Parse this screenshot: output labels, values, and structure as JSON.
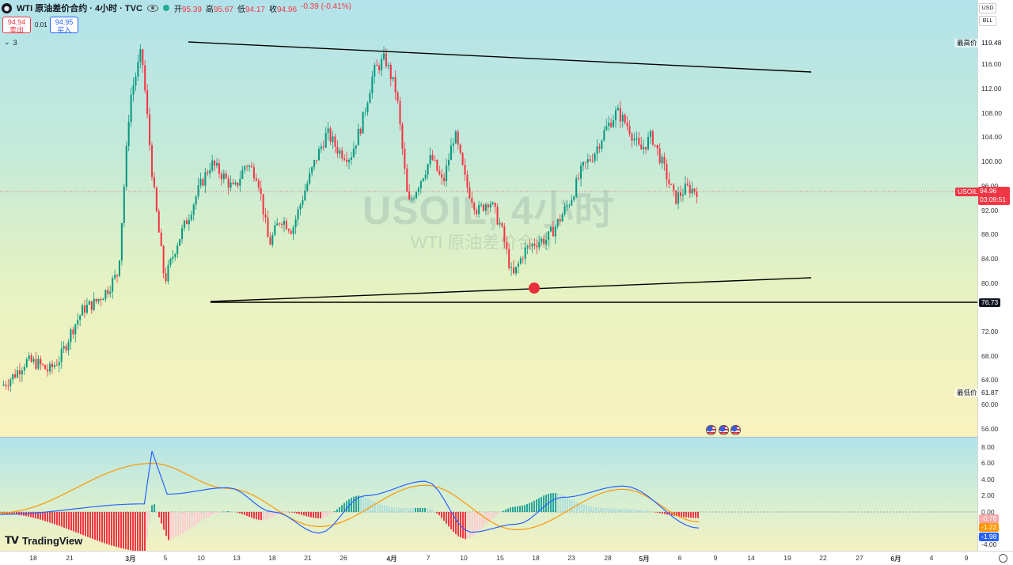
{
  "symbol": {
    "title": "WTI 原油差价合约 · 4小时 · TVC",
    "ohlc": [
      {
        "key": "开",
        "value": "95.39"
      },
      {
        "key": "高",
        "value": "95.67"
      },
      {
        "key": "低",
        "value": "94.17"
      },
      {
        "key": "收",
        "value": "94.96"
      },
      {
        "key": "",
        "value": "-0.39 (-0.41%)"
      }
    ],
    "market_status_color": "#22ab94"
  },
  "trade": {
    "sell_price": "94.94",
    "sell_label": "卖出",
    "buy_price": "94.95",
    "buy_label": "买入",
    "spread": "0.01"
  },
  "indicators_toggle": "3",
  "watermark": {
    "main": "USOIL, 4小时",
    "sub": "WTI 原油差价合约"
  },
  "price_scale": {
    "currency": "USD",
    "unit": "BLL",
    "ticks": [
      "116.00",
      "112.00",
      "108.00",
      "104.00",
      "100.00",
      "96.00",
      "92.00",
      "88.00",
      "84.00",
      "80.00",
      "72.00",
      "68.00",
      "64.00",
      "60.00",
      "56.00"
    ],
    "high_label": "最高价",
    "high_value": "119.48",
    "low_label": "最低价",
    "low_value": "61.87",
    "last_symbol": "USOIL",
    "last_price": "94.96",
    "countdown": "03:09:51",
    "line_label": "76.73"
  },
  "indicator_scale": {
    "ticks": [
      "8.00",
      "6.00",
      "4.00",
      "2.00",
      "0.00",
      "-4.00"
    ],
    "hist_value": "-0.76",
    "signal_value": "-1.22",
    "macd_value": "-1.98"
  },
  "time_axis": [
    "18",
    "21",
    "3月",
    "5",
    "10",
    "13",
    "18",
    "21",
    "26",
    "4月",
    "7",
    "10",
    "15",
    "18",
    "23",
    "28",
    "5月",
    "6",
    "9",
    "14",
    "19",
    "22",
    "27",
    "6月",
    "4",
    "9"
  ],
  "branding": {
    "name": "TradingView"
  },
  "colors": {
    "up": "#089981",
    "down": "#f23645",
    "macd": "#2962ff",
    "signal": "#ff9800",
    "trendline": "#000000",
    "marker": "#e8303c"
  },
  "chart_data": {
    "type": "candlestick",
    "title": "WTI 原油差价合约 · 4小时 · TVC",
    "ylim": [
      54,
      121
    ],
    "close_path": [
      [
        "18",
        62.8
      ],
      [
        "21",
        64.5
      ],
      [
        "",
        66.8
      ],
      [
        "",
        66.5
      ],
      [
        "",
        65.2
      ],
      [
        "",
        67.4
      ],
      [
        "3月",
        72.0
      ],
      [
        "",
        75.5
      ],
      [
        "5",
        76.5
      ],
      [
        "",
        78.5
      ],
      [
        "",
        81.5
      ],
      [
        "",
        110.0
      ],
      [
        "",
        118.0
      ],
      [
        "10",
        96.0
      ],
      [
        "",
        80.0
      ],
      [
        "",
        86.0
      ],
      [
        "13",
        90.5
      ],
      [
        "",
        95.5
      ],
      [
        "",
        99.5
      ],
      [
        "18",
        97.5
      ],
      [
        "",
        95.0
      ],
      [
        "21",
        99.5
      ],
      [
        "",
        97.5
      ],
      [
        "",
        86.0
      ],
      [
        "",
        90.5
      ],
      [
        "26",
        88.5
      ],
      [
        "",
        94.5
      ],
      [
        "",
        100.0
      ],
      [
        "",
        104.5
      ],
      [
        "",
        101.5
      ],
      [
        "4月",
        100.5
      ],
      [
        "",
        106.0
      ],
      [
        "",
        114.5
      ],
      [
        "7",
        116.8
      ],
      [
        "",
        111.0
      ],
      [
        "",
        92.5
      ],
      [
        "10",
        96.5
      ],
      [
        "",
        100.5
      ],
      [
        "",
        96.0
      ],
      [
        "",
        104.5
      ],
      [
        "15",
        96.0
      ],
      [
        "",
        91.5
      ],
      [
        "",
        93.5
      ],
      [
        "18",
        89.0
      ],
      [
        "",
        80.5
      ],
      [
        "",
        85.0
      ],
      [
        "",
        86.5
      ],
      [
        "23",
        87.0
      ],
      [
        "",
        90.0
      ],
      [
        "",
        93.5
      ],
      [
        "28",
        98.5
      ],
      [
        "",
        101.0
      ],
      [
        "",
        105.0
      ],
      [
        "5月",
        108.0
      ],
      [
        "",
        105.5
      ],
      [
        "",
        101.5
      ],
      [
        "",
        104.0
      ],
      [
        "6",
        99.0
      ],
      [
        "",
        93.5
      ],
      [
        "",
        95.4
      ],
      [
        "",
        94.96
      ]
    ],
    "overlay": {
      "high": 119.48,
      "low": 61.87,
      "last": 94.96,
      "horizontal_line": 76.73,
      "trendlines": [
        {
          "from": [
            "3月9",
            119.2
          ],
          "to": [
            "5月19",
            114.6
          ]
        },
        {
          "from": [
            "3月10",
            76.7
          ],
          "to": [
            "5月19",
            81.0
          ]
        }
      ],
      "marker": {
        "at": "4月18",
        "price": 79.3
      }
    },
    "macd": {
      "ylim": [
        -4.4,
        8.4
      ],
      "path": [
        [
          0,
          -0.3
        ],
        [
          0.19,
          1.0
        ],
        [
          0.2,
          7.5
        ],
        [
          0.22,
          2.2
        ],
        [
          0.3,
          3.0
        ],
        [
          0.36,
          0.0
        ],
        [
          0.42,
          -2.6
        ],
        [
          0.48,
          2.0
        ],
        [
          0.56,
          3.8
        ],
        [
          0.62,
          -2.5
        ],
        [
          0.68,
          -1.5
        ],
        [
          0.74,
          1.8
        ],
        [
          0.82,
          3.2
        ],
        [
          0.92,
          -1.98
        ]
      ],
      "signal_path": [
        [
          0,
          -0.1
        ],
        [
          0.2,
          6.0
        ],
        [
          0.3,
          2.9
        ],
        [
          0.42,
          -1.8
        ],
        [
          0.56,
          3.3
        ],
        [
          0.68,
          -2.2
        ],
        [
          0.82,
          2.8
        ],
        [
          0.92,
          -1.22
        ]
      ],
      "hist_last": -0.76
    }
  }
}
